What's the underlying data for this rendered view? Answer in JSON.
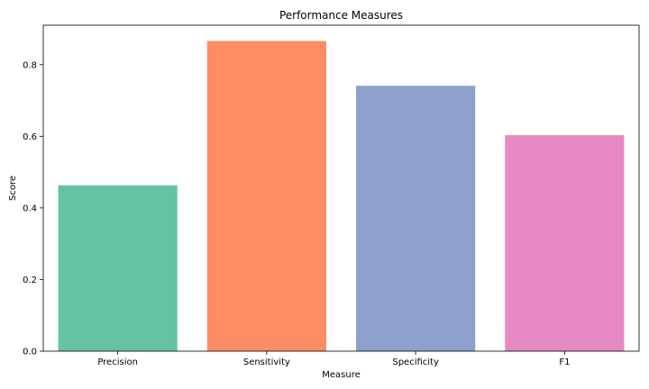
{
  "chart_data": {
    "type": "bar",
    "title": "Performance Measures",
    "xlabel": "Measure",
    "ylabel": "Score",
    "categories": [
      "Precision",
      "Sensitivity",
      "Specificity",
      "F1"
    ],
    "values": [
      0.463,
      0.866,
      0.741,
      0.603
    ],
    "colors": [
      "#66c2a5",
      "#fc8d62",
      "#8da0cb",
      "#e78ac3"
    ],
    "ylim": [
      0,
      0.91
    ],
    "yticks": [
      0.0,
      0.2,
      0.4,
      0.6,
      0.8
    ],
    "ytick_labels": [
      "0.0",
      "0.2",
      "0.4",
      "0.6",
      "0.8"
    ],
    "grid": false,
    "legend": "none"
  }
}
